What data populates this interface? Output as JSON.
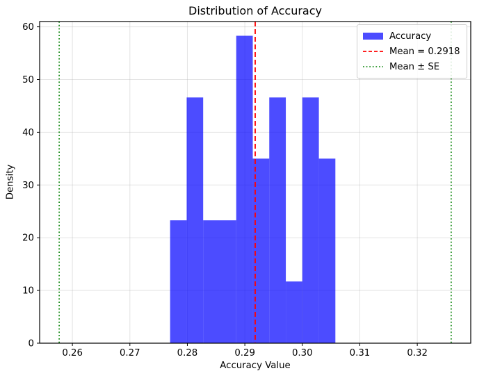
{
  "chart_data": {
    "type": "bar",
    "title": "Distribution of Accuracy",
    "xlabel": "Accuracy Value",
    "ylabel": "Density",
    "x_ticks": [
      0.26,
      0.27,
      0.28,
      0.29,
      0.3,
      0.31,
      0.32
    ],
    "x_tick_labels": [
      "0.26",
      "0.27",
      "0.28",
      "0.29",
      "0.30",
      "0.31",
      "0.32"
    ],
    "y_ticks": [
      0,
      10,
      20,
      30,
      40,
      50,
      60
    ],
    "xlim": [
      0.2543,
      0.3293
    ],
    "ylim": [
      0,
      61
    ],
    "grid": true,
    "bin_edges": [
      0.277,
      0.27988,
      0.28275,
      0.28563,
      0.2885,
      0.29138,
      0.29425,
      0.29713,
      0.3,
      0.30288,
      0.30575
    ],
    "densities": [
      23.3,
      46.6,
      23.3,
      23.3,
      58.3,
      35.0,
      46.6,
      11.7,
      46.6,
      35.0
    ],
    "mean": 0.2918,
    "mean_minus_se": 0.2577,
    "mean_plus_se": 0.3259,
    "legend": {
      "position": "upper-right",
      "items": [
        {
          "label": "Accuracy",
          "swatch": "blue-patch"
        },
        {
          "label": "Mean = 0.2918",
          "swatch": "red-dashed-line"
        },
        {
          "label": "Mean ± SE",
          "swatch": "green-dotted-line"
        }
      ]
    },
    "colors": {
      "bar": "#0000ff",
      "bar_alpha": 0.7,
      "mean_line": "#ff0000",
      "se_line": "#008000",
      "grid": "#b0b0b0",
      "spine": "#000000",
      "text": "#000000",
      "background": "#ffffff"
    }
  }
}
